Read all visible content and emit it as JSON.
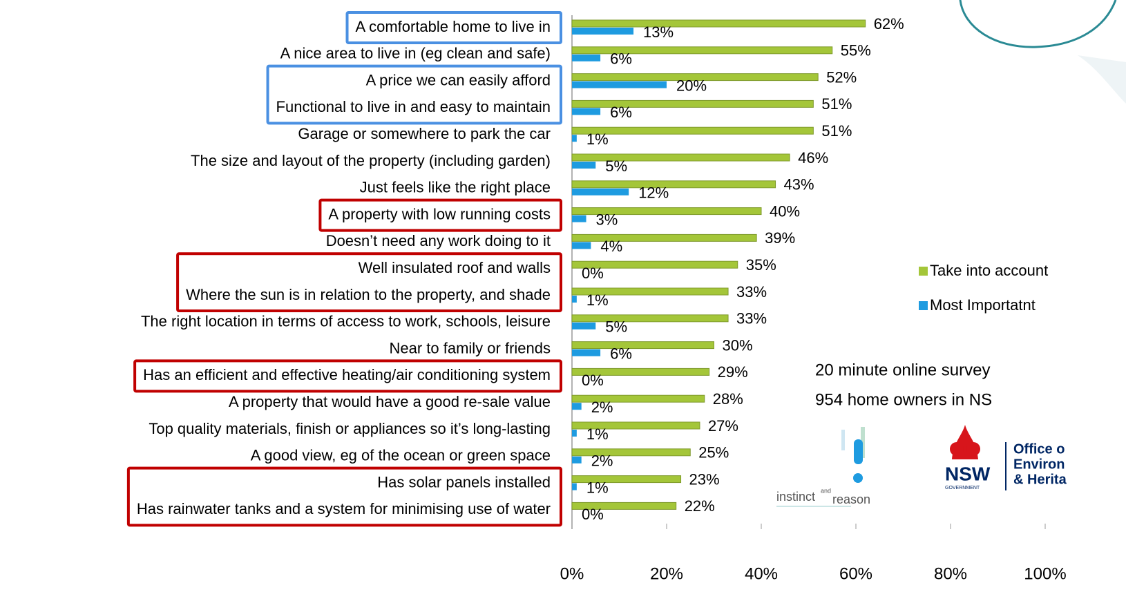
{
  "chart_data": {
    "type": "bar",
    "orientation": "horizontal",
    "categories": [
      "A comfortable home to live in",
      "A nice area to live in (eg clean and safe)",
      "A price we can easily afford",
      "Functional to live in and easy to maintain",
      "Garage or somewhere to park the car",
      "The size and layout of the property (including garden)",
      "Just feels like the right place",
      "A property with low running costs",
      "Doesn’t need any work doing to it",
      "Well insulated roof and walls",
      "Where the sun is in relation to the property, and shade",
      "The right location in terms of access to work, schools, leisure",
      "Near to family or friends",
      "Has an efficient and effective heating/air conditioning system",
      "A property that would have a good re-sale value",
      "Top quality materials, finish or appliances so it’s long-lasting",
      "A good view, eg of the ocean or green space",
      "Has solar panels installed",
      "Has rainwater tanks and a system for minimising use of water"
    ],
    "series": [
      {
        "name": "Take into account",
        "color": "#a4c639",
        "values": [
          62,
          55,
          52,
          51,
          51,
          46,
          43,
          40,
          39,
          35,
          33,
          33,
          30,
          29,
          28,
          27,
          25,
          23,
          22
        ],
        "value_labels": [
          "62%",
          "55%",
          "52%",
          "51%",
          "51%",
          "46%",
          "43%",
          "40%",
          "39%",
          "35%",
          "33%",
          "33%",
          "30%",
          "29%",
          "28%",
          "27%",
          "25%",
          "23%",
          "22%"
        ]
      },
      {
        "name": "Most Importatnt",
        "color": "#1e9be0",
        "values": [
          13,
          6,
          20,
          6,
          1,
          5,
          12,
          3,
          4,
          0,
          1,
          5,
          6,
          0,
          2,
          1,
          2,
          1,
          0
        ],
        "value_labels": [
          "13%",
          "6%",
          "20%",
          "6%",
          "1%",
          "5%",
          "12%",
          "3%",
          "4%",
          "0%",
          "1%",
          "5%",
          "6%",
          "0%",
          "2%",
          "1%",
          "2%",
          "1%",
          "0%"
        ]
      }
    ],
    "xlim": [
      0,
      100
    ],
    "xticks": [
      {
        "value": 0,
        "label": "0%"
      },
      {
        "value": 20,
        "label": "20%"
      },
      {
        "value": 40,
        "label": "40%"
      },
      {
        "value": 60,
        "label": "60%"
      },
      {
        "value": 80,
        "label": "80%"
      },
      {
        "value": 100,
        "label": "100%"
      }
    ],
    "annotations": [
      "20 minute online survey",
      "954 home owners in NS"
    ]
  },
  "logos": {
    "instinct": "instinct",
    "and": "and",
    "reason": "reason",
    "nsw": "NSW",
    "government": "GOVERNMENT",
    "office": [
      "Office o",
      "Environ",
      "& Herita"
    ]
  }
}
